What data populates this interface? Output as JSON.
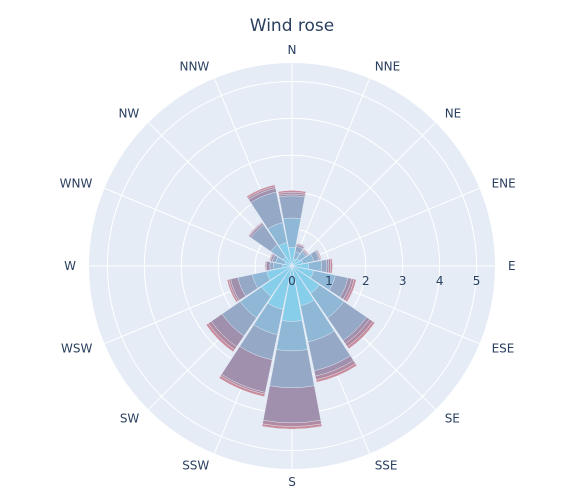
{
  "chart_data": {
    "type": "bar",
    "subtype": "barpolar",
    "title": "Wind rose",
    "radial_axis": {
      "range": [
        0,
        5.5
      ],
      "tick_values": [
        0,
        1,
        2,
        3,
        4,
        5
      ],
      "tick_labels": [
        "0",
        "1",
        "2",
        "3",
        "4",
        "5"
      ]
    },
    "categories": [
      "N",
      "NNE",
      "NE",
      "ENE",
      "E",
      "ESE",
      "SE",
      "SSE",
      "S",
      "SSW",
      "SW",
      "WSW",
      "W",
      "WNW",
      "NW",
      "NNW"
    ],
    "series": [
      {
        "color": "#87ceeb",
        "values": [
          0.5,
          0.2,
          0.25,
          0.3,
          0.45,
          0.6,
          0.9,
          1.1,
          1.5,
          1.2,
          1.0,
          0.7,
          0.25,
          0.2,
          0.3,
          0.65
        ]
      },
      {
        "color": "#8fb8d6",
        "values": [
          1.3,
          0.4,
          0.45,
          0.6,
          0.8,
          1.2,
          1.7,
          2.1,
          2.3,
          1.9,
          1.7,
          1.1,
          0.5,
          0.45,
          0.7,
          1.2
        ]
      },
      {
        "color": "#95a9c6",
        "values": [
          1.9,
          0.55,
          0.5,
          0.75,
          0.95,
          1.55,
          2.45,
          2.9,
          3.3,
          2.6,
          2.3,
          1.5,
          0.6,
          0.55,
          1.35,
          2.05
        ]
      },
      {
        "color": "#a08fad",
        "values": [
          1.95,
          0.6,
          0.52,
          0.78,
          1.0,
          1.65,
          2.55,
          3.05,
          4.25,
          3.5,
          2.65,
          1.7,
          0.7,
          0.6,
          1.4,
          2.15
        ]
      },
      {
        "color": "#b08aa2",
        "values": [
          2.0,
          0.62,
          0.54,
          0.8,
          1.05,
          1.72,
          2.65,
          3.15,
          4.35,
          3.55,
          2.75,
          1.75,
          0.72,
          0.62,
          1.42,
          2.2
        ]
      },
      {
        "color": "#c98b9b",
        "values": [
          2.05,
          0.64,
          0.56,
          0.82,
          1.1,
          1.78,
          2.72,
          3.22,
          4.42,
          3.62,
          2.82,
          1.8,
          0.74,
          0.64,
          1.44,
          2.25
        ]
      }
    ]
  }
}
